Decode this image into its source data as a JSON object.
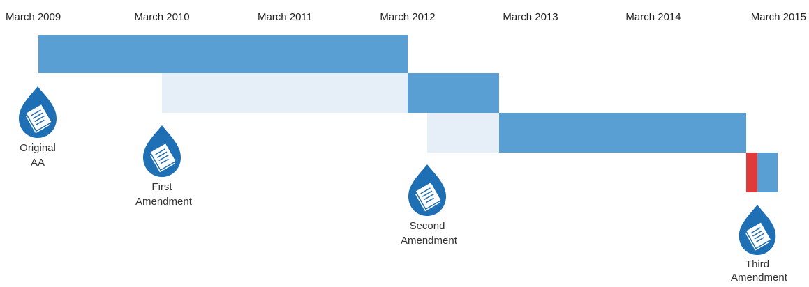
{
  "axis": {
    "ticks": [
      "March 2009",
      "March 2010",
      "March 2011",
      "March 2012",
      "March 2013",
      "March 2014",
      "March 2015"
    ]
  },
  "colors": {
    "bar_dark": "#5a9fd4",
    "bar_light": "#e6eff7",
    "highlight": "#e03a3a",
    "icon_fill": "#1f6fb5"
  },
  "documents": [
    {
      "icon": "document-drop-icon",
      "line1": "Original",
      "line2": "AA"
    },
    {
      "icon": "document-drop-icon",
      "line1": "First",
      "line2": "Amendment"
    },
    {
      "icon": "document-drop-icon",
      "line1": "Second",
      "line2": "Amendment"
    },
    {
      "icon": "document-drop-icon",
      "line1": "Third",
      "line2": "Amendment"
    }
  ]
}
